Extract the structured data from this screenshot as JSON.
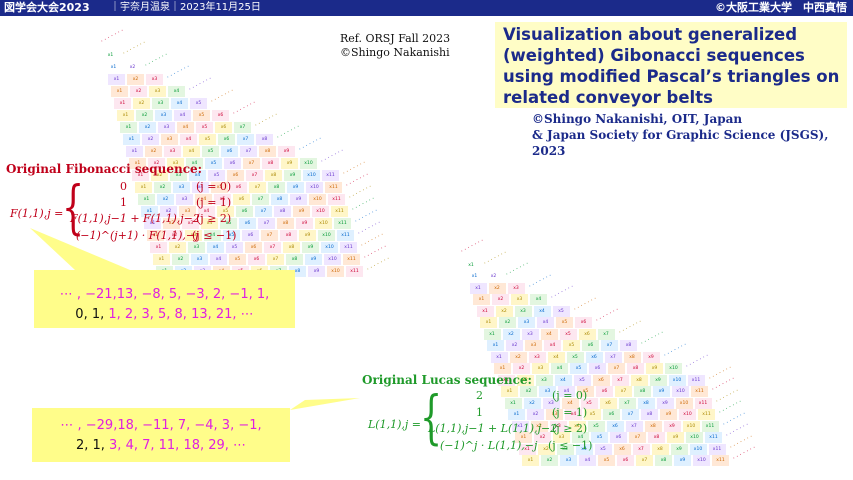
{
  "header": {
    "left": "図学会大会2023",
    "middle": "｜宇奈月温泉｜2023年11月25日",
    "right": "©大阪工業大学　中西真悟"
  },
  "reference": {
    "line1": "Ref. ORSJ Fall 2023",
    "line2": "©Shingo Nakanishi"
  },
  "title": "Visualization about generalized (weighted) Gibonacci sequences using modified Pascal’s triangles on related conveyor belts",
  "credit": {
    "line1": "©Shingo Nakanishi, OIT, Japan",
    "line2": "& Japan Society for Graphic Science (JSGS),",
    "line3": "2023"
  },
  "fibonacci": {
    "heading": "Original Fibonacci sequence:",
    "lhs": "F(1,1),j =",
    "brace": "{",
    "cases": [
      {
        "expr": "0",
        "cond": "(j = 0)"
      },
      {
        "expr": "1",
        "cond": "(j = 1)"
      },
      {
        "expr": "F(1,1),j−1 + F(1,1),j−2",
        "cond": "(j ≥ 2)"
      },
      {
        "expr": "(−1)^(j+1) · F(1,1),−j",
        "cond": "(j ≤ −1)"
      }
    ],
    "seq_line1": "⋯ , −21,13, −8, 5, −3, 2, −1, 1,",
    "seq_line2_black": "0, 1,",
    "seq_line2_pink": "1, 2, 3, 5, 8, 13, 21, ⋯"
  },
  "lucas": {
    "heading": "Original Lucas sequence:",
    "lhs": "L(1,1),j =",
    "brace": "{",
    "cases": [
      {
        "expr": "2",
        "cond": "(j = 0)"
      },
      {
        "expr": "1",
        "cond": "(j = 1)"
      },
      {
        "expr": "L(1,1),j−1 + L(1,1),j−2",
        "cond": "(j ≥ 2)"
      },
      {
        "expr": "(−1)^j · L(1,1),−j",
        "cond": "(j ≤ −1)"
      }
    ],
    "seq_line1": "⋯ , −29,18, −11, 7, −4, 3, −1,",
    "seq_line2_black": "2, 1,",
    "seq_line2_pink": "3, 4, 7, 11, 18, 29, ⋯"
  },
  "colors": {
    "header_bg": "#1b2a8a",
    "title_text": "#1b2a8a",
    "title_bg": "#fffdc6",
    "fibonacci": "#c0001a",
    "lucas": "#1f9a2a",
    "callout_bg": "#fffd8a",
    "highlight": "#e020e0"
  }
}
